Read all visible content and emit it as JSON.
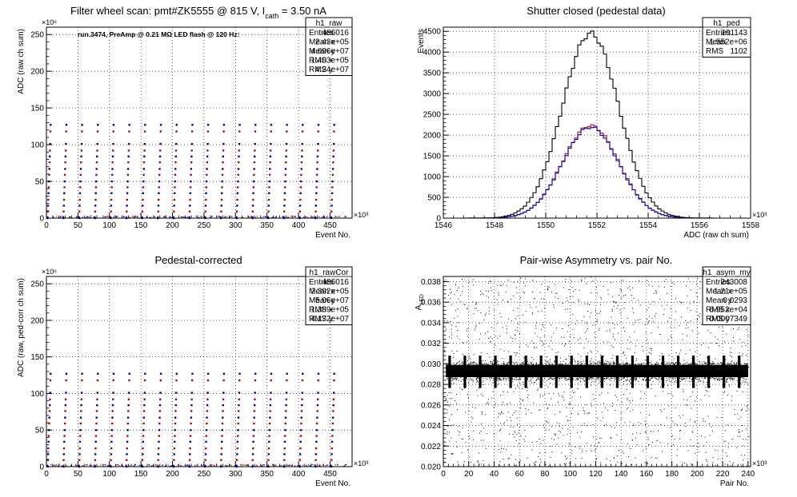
{
  "pads": [
    {
      "id": "raw",
      "title_prefix": "Filter wheel scan: pmt#ZK5555 @   815 V, I",
      "title_sub": "cath",
      "title_suffix": " = 3.50 nA",
      "annotation": "run.3474, PreAmp @ 0.21 MΩ LED flash @  120 Hz:",
      "ylabel": "ADC (raw ch sum)",
      "xlabel": "Event No.",
      "x_exponent": "×10³",
      "y_exponent": "×10⁶",
      "stats": {
        "name": "h1_raw",
        "rows": [
          [
            "Entries",
            "486016"
          ],
          [
            "Mean x",
            "2.43e+05"
          ],
          [
            "Mean y",
            "4.696e+07"
          ],
          [
            "RMS x",
            "1.403e+05"
          ],
          [
            "RMS y",
            "4.24e+07"
          ]
        ]
      }
    },
    {
      "id": "ped",
      "title": "Shutter closed (pedestal data)",
      "ylabel": "Events",
      "xlabel": "ADC (raw ch sum)",
      "x_exponent": "×10³",
      "stats": {
        "name": "h1_ped",
        "rows": [
          [
            "Entries",
            "101143"
          ],
          [
            "Mean",
            "1.552e+06"
          ],
          [
            "RMS",
            "1102"
          ]
        ]
      }
    },
    {
      "id": "rawcor",
      "title": "Pedestal-corrected",
      "ylabel": "ADC (raw, ped-corr ch sum)",
      "xlabel": "Event No.",
      "x_exponent": "×10³",
      "y_exponent": "×10⁶",
      "stats": {
        "name": "h1_rawCor",
        "rows": [
          [
            "Entries",
            "486016"
          ],
          [
            "Mean x",
            "2.392e+05"
          ],
          [
            "Mean y",
            "5.06e+07"
          ],
          [
            "RMS x",
            "1.389e+05"
          ],
          [
            "RMS y",
            "4.172e+07"
          ]
        ]
      }
    },
    {
      "id": "asym",
      "title": "Pair-wise Asymmetry vs. pair No.",
      "ylabel_main": "A",
      "ylabel_sub": "LED",
      "xlabel": "Pair No.",
      "x_exponent": "×10³",
      "stats": {
        "name": "h1_asym_my",
        "rows": [
          [
            "Entries",
            "243008"
          ],
          [
            "Mean x",
            "1.21e+05"
          ],
          [
            "Mean y",
            "0.0293"
          ],
          [
            "RMS x",
            "6.952e+04"
          ],
          [
            "RMS y",
            "0.0007349"
          ]
        ]
      }
    }
  ],
  "chart_data": [
    {
      "type": "scatter",
      "title": "Filter wheel scan: pmt#ZK5555 @ 815 V, I_cath = 3.50 nA",
      "xlabel": "Event No.",
      "ylabel": "ADC (raw ch sum)",
      "x_scale": 1000,
      "y_scale": 1000000,
      "xlim": [
        0,
        485
      ],
      "ylim": [
        0,
        260
      ],
      "x_ticks": [
        0,
        50,
        100,
        150,
        200,
        250,
        300,
        350,
        400,
        450
      ],
      "y_ticks": [
        0,
        50,
        100,
        150,
        200,
        250
      ],
      "grid": true,
      "pattern": {
        "cycle_period": 25,
        "cycle_start": 2,
        "cycle_count": 19,
        "levels": [
          {
            "value": 0,
            "color": "#0000cc"
          },
          {
            "value": 9,
            "color": "#cc0000"
          },
          {
            "value": 17,
            "color": "#0000cc"
          },
          {
            "value": 25,
            "color": "#cc0000"
          },
          {
            "value": 34,
            "color": "#0000cc"
          },
          {
            "value": 42,
            "color": "#cc0000"
          },
          {
            "value": 50,
            "color": "#0000cc"
          },
          {
            "value": 59,
            "color": "#cc0000"
          },
          {
            "value": 67,
            "color": "#0000cc"
          },
          {
            "value": 76,
            "color": "#cc0000"
          },
          {
            "value": 84,
            "color": "#0000cc"
          },
          {
            "value": 92,
            "color": "#cc0000"
          },
          {
            "value": 101,
            "color": "#0000cc"
          },
          {
            "value": 118,
            "color": "#cc0000"
          },
          {
            "value": 127,
            "color": "#0000cc"
          }
        ]
      },
      "legend": "top-right stats box"
    },
    {
      "type": "histogram",
      "title": "Shutter closed (pedestal data)",
      "xlabel": "ADC (raw ch sum)",
      "ylabel": "Events",
      "x_scale": 1000,
      "xlim": [
        1546,
        1558
      ],
      "ylim": [
        0,
        4600
      ],
      "x_ticks": [
        1546,
        1548,
        1550,
        1552,
        1554,
        1556,
        1558
      ],
      "y_ticks": [
        0,
        500,
        1000,
        1500,
        2000,
        2500,
        3000,
        3500,
        4000,
        4500
      ],
      "grid": true,
      "series": [
        {
          "color": "#000000",
          "peak_x": 1551.75,
          "peak": 4450,
          "sigma": 1.1
        },
        {
          "color": "#cc0000",
          "peak_x": 1551.75,
          "peak": 2230,
          "sigma": 1.1
        },
        {
          "color": "#0000cc",
          "peak_x": 1551.75,
          "peak": 2190,
          "sigma": 1.1
        }
      ],
      "legend": "top-right stats box"
    },
    {
      "type": "scatter",
      "title": "Pedestal-corrected",
      "xlabel": "Event No.",
      "ylabel": "ADC (raw, ped-corr ch sum)",
      "x_scale": 1000,
      "y_scale": 1000000,
      "xlim": [
        0,
        485
      ],
      "ylim": [
        0,
        260
      ],
      "x_ticks": [
        0,
        50,
        100,
        150,
        200,
        250,
        300,
        350,
        400,
        450
      ],
      "y_ticks": [
        0,
        50,
        100,
        150,
        200,
        250
      ],
      "grid": true,
      "pattern": {
        "cycle_period": 25,
        "cycle_start": 2,
        "cycle_count": 19,
        "levels": [
          {
            "value": 0,
            "color": "#0000cc"
          },
          {
            "value": 9,
            "color": "#cc0000"
          },
          {
            "value": 17,
            "color": "#0000cc"
          },
          {
            "value": 25,
            "color": "#cc0000"
          },
          {
            "value": 34,
            "color": "#0000cc"
          },
          {
            "value": 42,
            "color": "#cc0000"
          },
          {
            "value": 50,
            "color": "#0000cc"
          },
          {
            "value": 59,
            "color": "#cc0000"
          },
          {
            "value": 67,
            "color": "#0000cc"
          },
          {
            "value": 76,
            "color": "#cc0000"
          },
          {
            "value": 84,
            "color": "#0000cc"
          },
          {
            "value": 92,
            "color": "#cc0000"
          },
          {
            "value": 101,
            "color": "#0000cc"
          },
          {
            "value": 118,
            "color": "#cc0000"
          },
          {
            "value": 127,
            "color": "#0000cc"
          }
        ]
      },
      "legend": "top-right stats box"
    },
    {
      "type": "scatter",
      "title": "Pair-wise Asymmetry vs. pair No.",
      "xlabel": "Pair No.",
      "ylabel": "A_LED",
      "x_scale": 1000,
      "xlim": [
        0,
        242
      ],
      "ylim": [
        0.02,
        0.0385
      ],
      "x_ticks": [
        0,
        20,
        40,
        60,
        80,
        100,
        120,
        140,
        160,
        180,
        200,
        220,
        240
      ],
      "y_ticks": [
        0.02,
        0.022,
        0.024,
        0.026,
        0.028,
        0.03,
        0.032,
        0.034,
        0.036,
        0.038
      ],
      "grid": true,
      "band": {
        "center": 0.0293,
        "half_width": 0.0006,
        "spike_period": 12,
        "spike_start": 5,
        "spike_count": 20,
        "spike_extent": 0.0015
      },
      "legend": "top-right stats box"
    }
  ]
}
